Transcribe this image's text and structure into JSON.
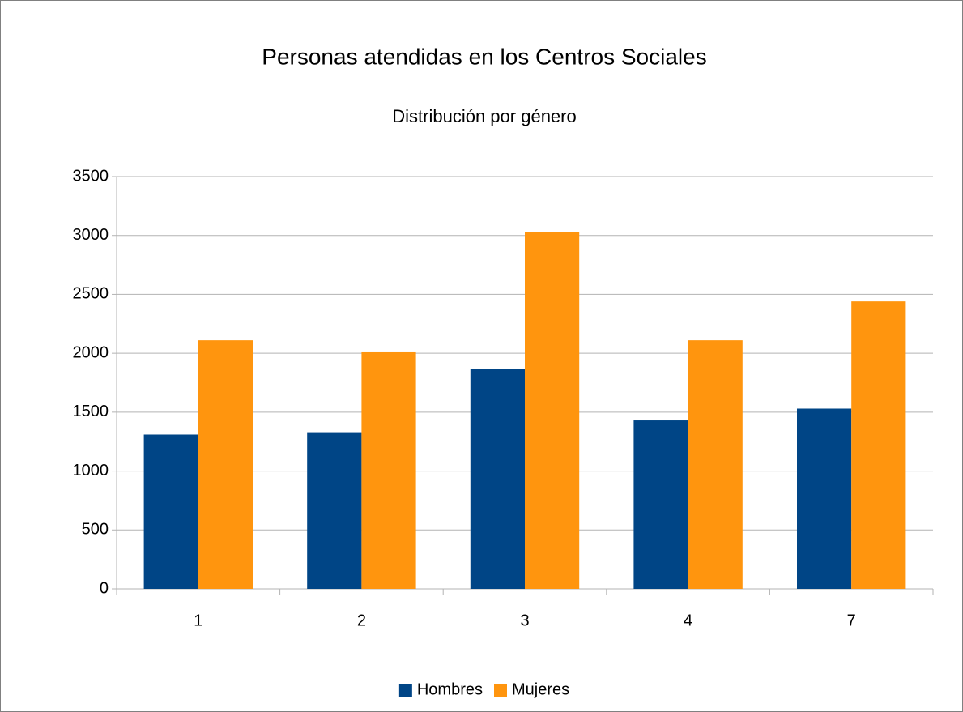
{
  "chart_data": {
    "type": "bar",
    "title": "Personas atendidas en los Centros Sociales",
    "subtitle": "Distribución por género",
    "categories": [
      "1",
      "2",
      "3",
      "4",
      "7"
    ],
    "series": [
      {
        "name": "Hombres",
        "color": "#004586",
        "values": [
          1310,
          1330,
          1870,
          1430,
          1530
        ]
      },
      {
        "name": "Mujeres",
        "color": "#ff950e",
        "values": [
          2110,
          2015,
          3030,
          2110,
          2440
        ]
      }
    ],
    "ylim": [
      0,
      3500
    ],
    "yticks": [
      0,
      500,
      1000,
      1500,
      2000,
      2500,
      3000,
      3500
    ],
    "grid": true,
    "legend": "bottom"
  }
}
